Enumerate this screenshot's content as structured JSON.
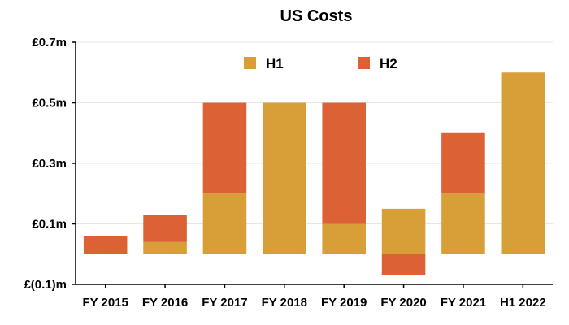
{
  "chart_data": {
    "type": "bar",
    "stacked": true,
    "title": "US Costs",
    "xlabel": "",
    "ylabel": "",
    "categories": [
      "FY 2015",
      "FY 2016",
      "FY 2017",
      "FY 2018",
      "FY 2019",
      "FY 2020",
      "FY 2021",
      "H1 2022"
    ],
    "series": [
      {
        "name": "H1",
        "color": "#D89E38",
        "values": [
          0,
          0.04,
          0.2,
          0.5,
          0.1,
          0.15,
          0.2,
          0.6
        ]
      },
      {
        "name": "H2",
        "color": "#DC6236",
        "values": [
          0.06,
          0.09,
          0.3,
          0,
          0.4,
          -0.07,
          0.2,
          0
        ]
      }
    ],
    "ylim": [
      -0.1,
      0.7
    ],
    "yticks": [
      {
        "value": 0.7,
        "label": "£0.7m"
      },
      {
        "value": 0.5,
        "label": "£0.5m"
      },
      {
        "value": 0.3,
        "label": "£0.3m"
      },
      {
        "value": 0.1,
        "label": "£0.1m"
      },
      {
        "value": -0.1,
        "label": "£(0.1)m"
      }
    ],
    "grid": true,
    "legend": "top-center"
  }
}
